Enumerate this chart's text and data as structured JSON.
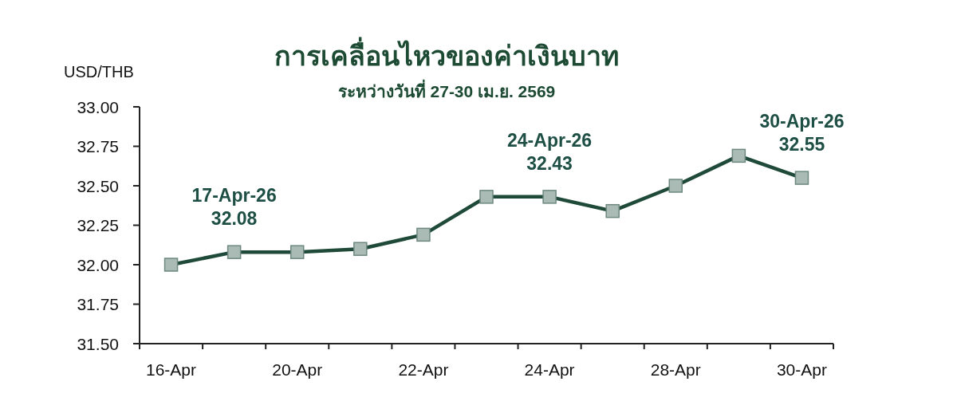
{
  "chart_data": {
    "type": "line",
    "title": "การเคลื่อนไหวของค่าเงินบาท",
    "subtitle": "ระหว่างวันที่ 27-30 เม.ย. 2569",
    "ylabel": "USD/THB",
    "categories": [
      "16-Apr",
      null,
      "20-Apr",
      null,
      "22-Apr",
      null,
      "24-Apr",
      null,
      "28-Apr",
      null,
      "30-Apr"
    ],
    "series": [
      {
        "color": "#1f4a3a",
        "values": [
          32.0,
          32.08,
          32.08,
          32.1,
          32.19,
          32.43,
          32.43,
          32.34,
          32.5,
          32.69,
          32.55
        ]
      }
    ],
    "ylim": [
      31.5,
      33.0
    ],
    "yticks": [
      {
        "value": 31.5,
        "label": "31.50"
      },
      {
        "value": 31.75,
        "label": "31.75"
      },
      {
        "value": 32.0,
        "label": "32.00"
      },
      {
        "value": 32.25,
        "label": "32.25"
      },
      {
        "value": 32.5,
        "label": "32.50"
      },
      {
        "value": 32.75,
        "label": "32.75"
      },
      {
        "value": 33.0,
        "label": "33.00"
      }
    ],
    "marker": "square",
    "annotations": [
      {
        "text": "17-Apr-26\n32.08",
        "y": 32.08
      },
      {
        "text": "24-Apr-26\n32.43",
        "x": "24-Apr",
        "y": 32.43
      },
      {
        "text": "30-Apr-26\n32.55",
        "x": "30-Apr",
        "y": 32.55
      }
    ]
  }
}
